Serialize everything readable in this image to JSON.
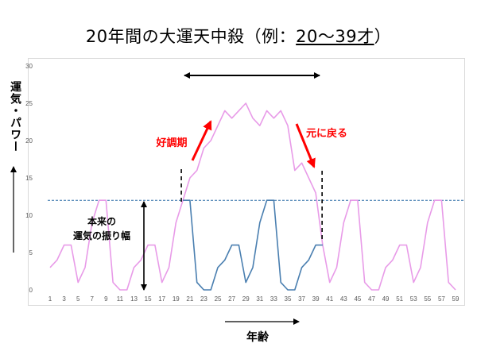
{
  "title": {
    "prefix": "20年間の大運天中殺（例：",
    "underlined": "20～39才",
    "suffix": "）"
  },
  "annotations": {
    "rising": "好調期",
    "falling": "元に戻る",
    "amplitude_line1": "本来の",
    "amplitude_line2": "運気の振り幅"
  },
  "colors": {
    "pink": "#e89be8",
    "blue": "#4a7fb0",
    "dashed_ref": "#2f6ea7",
    "red": "#ff0000"
  },
  "chart_data": {
    "type": "line",
    "title": "20年間の大運天中殺（例：20～39才）",
    "xlabel": "年齢",
    "ylabel": "運気・パワー",
    "ylim": [
      0,
      30
    ],
    "yticks": [
      0,
      5,
      10,
      15,
      20,
      25,
      30
    ],
    "xticks": [
      1,
      3,
      5,
      7,
      9,
      11,
      13,
      15,
      17,
      19,
      21,
      23,
      25,
      27,
      29,
      31,
      33,
      35,
      37,
      39,
      41,
      43,
      45,
      47,
      49,
      51,
      53,
      55,
      57,
      59
    ],
    "grid": false,
    "reference_line": 12,
    "highlight_range": [
      20,
      39
    ],
    "series": [
      {
        "name": "",
        "color": "#e89be8",
        "x": [
          1,
          2,
          3,
          4,
          5,
          6,
          7,
          8,
          9,
          10,
          11,
          12,
          13,
          14,
          15,
          16,
          17,
          18,
          19,
          20,
          21,
          22,
          23,
          24,
          25,
          26,
          27,
          28,
          29,
          30,
          31,
          32,
          33,
          34,
          35,
          36,
          37,
          38,
          39,
          40,
          41,
          42,
          43,
          44,
          45,
          46,
          47,
          48,
          49,
          50,
          51,
          52,
          53,
          54,
          55,
          56,
          57,
          58,
          59
        ],
        "values": [
          3,
          4,
          6,
          6,
          1,
          3,
          9,
          12,
          12,
          1,
          0,
          0,
          3,
          4,
          6,
          6,
          1,
          3,
          9,
          12,
          15,
          16,
          19,
          20,
          22,
          24,
          23,
          24,
          25,
          23,
          22,
          24,
          23,
          24,
          22,
          16,
          17,
          15,
          13,
          6,
          1,
          3,
          9,
          12,
          12,
          1,
          0,
          0,
          3,
          4,
          6,
          6,
          1,
          3,
          9,
          12,
          12,
          1,
          0
        ]
      },
      {
        "name": "",
        "color": "#4a7fb0",
        "x": [
          20,
          21,
          22,
          23,
          24,
          25,
          26,
          27,
          28,
          29,
          30,
          31,
          32,
          33,
          34,
          35,
          36,
          37,
          38,
          39,
          40
        ],
        "values": [
          12,
          12,
          1,
          0,
          0,
          3,
          4,
          6,
          6,
          1,
          3,
          9,
          12,
          12,
          1,
          0,
          0,
          3,
          4,
          6,
          6
        ]
      }
    ]
  }
}
